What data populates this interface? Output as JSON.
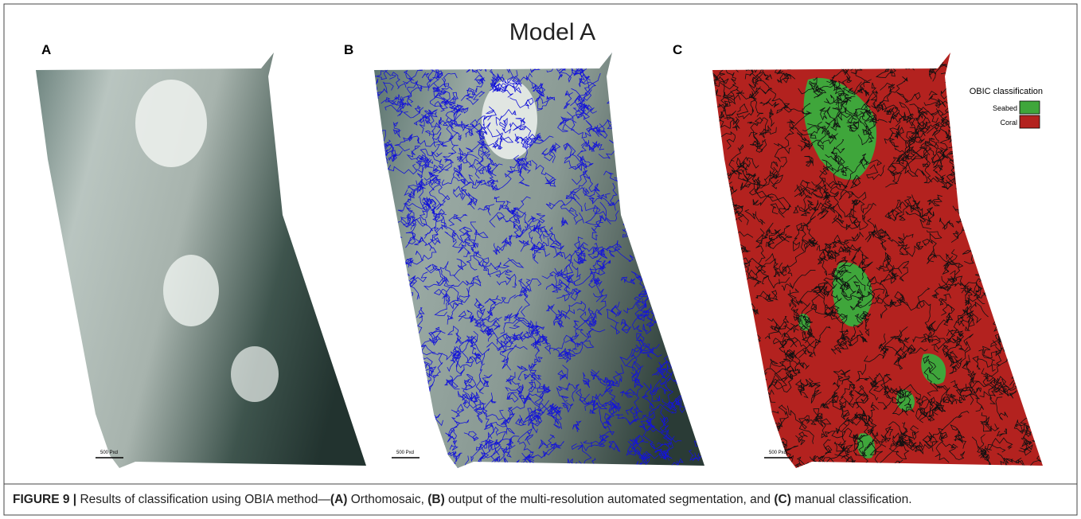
{
  "figure": {
    "title": "Model A",
    "panels": [
      {
        "label": "A",
        "scale_bar": "500 Pxd"
      },
      {
        "label": "B",
        "scale_bar": "500 Pxd"
      },
      {
        "label": "C",
        "scale_bar": "500 Pxd"
      }
    ],
    "legend": {
      "title": "OBIC classification",
      "items": [
        {
          "label": "Seabed",
          "color": "#3fa63b"
        },
        {
          "label": "Coral",
          "color": "#b3221f"
        }
      ]
    }
  },
  "caption": {
    "label": "FIGURE 9 |",
    "parts": [
      "Results of classification using OBIA method—",
      "(A)",
      " Orthomosaic, ",
      "(B)",
      " output of the multi-resolution automated segmentation, and ",
      "(C)",
      " manual classification."
    ]
  }
}
